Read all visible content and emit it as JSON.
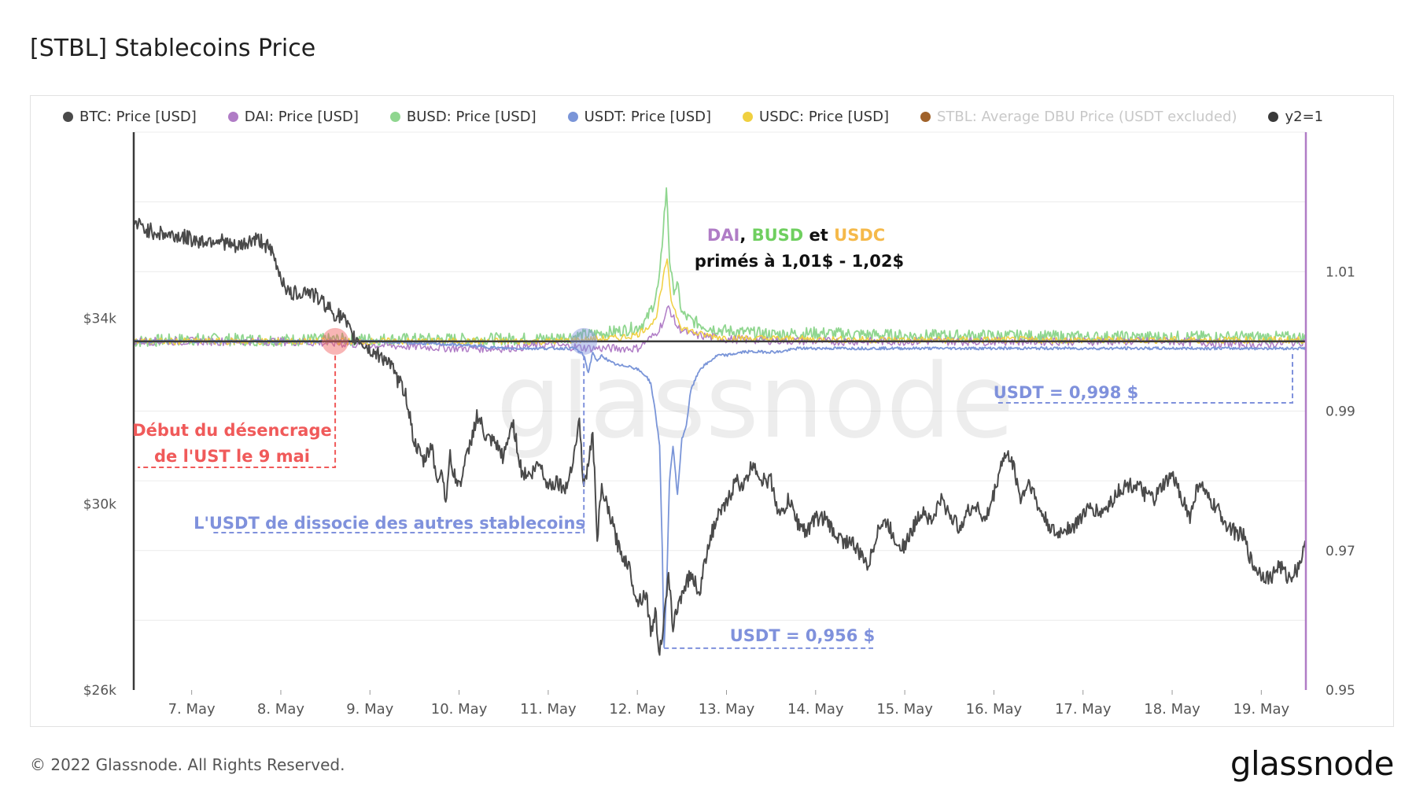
{
  "title": "[STBL] Stablecoins Price",
  "footer": "© 2022 Glassnode. All Rights Reserved.",
  "brand": "glassnode",
  "watermark": "glassnode",
  "colors": {
    "btc": "#4a4a4a",
    "dai": "#b07cc6",
    "busd": "#8fd68f",
    "usdt": "#7a95d8",
    "usdc": "#f0d040",
    "stbl": "#a0622a",
    "y2": "#3a3a3a",
    "annotation_red": "#f05a5a",
    "annotation_blue": "#7f91dc"
  },
  "legend": [
    {
      "label": "BTC: Price [USD]",
      "color": "#4a4a4a",
      "faded": false
    },
    {
      "label": "DAI: Price [USD]",
      "color": "#b07cc6",
      "faded": false
    },
    {
      "label": "BUSD: Price [USD]",
      "color": "#8fd68f",
      "faded": false
    },
    {
      "label": "USDT: Price [USD]",
      "color": "#7a95d8",
      "faded": false
    },
    {
      "label": "USDC: Price [USD]",
      "color": "#f0d040",
      "faded": false
    },
    {
      "label": "STBL: Average DBU Price (USDT excluded)",
      "color": "#a0622a",
      "faded": true
    },
    {
      "label": "y2=1",
      "color": "#3a3a3a",
      "faded": false
    }
  ],
  "annotations": {
    "depeg_line1": "Début du désencrage",
    "depeg_line2": "de l'UST le 9 mai",
    "usdt_dissociate": "L'USDT de dissocie des autres stablecoins",
    "usdt_low": "USDT = 0,956 $",
    "usdt_recover": "USDT = 0,998 $",
    "premium_dai": "DAI",
    "premium_sep1": ", ",
    "premium_busd": "BUSD",
    "premium_et": " et ",
    "premium_usdc": "USDC",
    "premium_line2": "primés à 1,01$ - 1,02$"
  },
  "chart_data": {
    "type": "line",
    "x_ticks": [
      "7. May",
      "8. May",
      "9. May",
      "10. May",
      "11. May",
      "12. May",
      "13. May",
      "14. May",
      "15. May",
      "16. May",
      "17. May",
      "18. May",
      "19. May"
    ],
    "y_left": {
      "ticks": [
        "$26k",
        "$30k",
        "$34k"
      ],
      "tick_values": [
        26000,
        30000,
        34000
      ],
      "range": [
        26000,
        38000
      ],
      "label": ""
    },
    "y_right": {
      "ticks": [
        "0.95",
        "0.97",
        "0.99",
        "1.01"
      ],
      "tick_values": [
        0.95,
        0.97,
        0.99,
        1.01
      ],
      "range": [
        0.95,
        1.03
      ],
      "label": ""
    },
    "x_range_days": [
      6.35,
      19.5
    ],
    "series": [
      {
        "name": "BTC: Price [USD]",
        "axis": "left",
        "x": [
          6.35,
          6.5,
          6.7,
          6.9,
          7.1,
          7.3,
          7.5,
          7.7,
          7.8,
          7.9,
          8.0,
          8.1,
          8.3,
          8.5,
          8.6,
          8.7,
          8.8,
          8.9,
          9.0,
          9.1,
          9.2,
          9.3,
          9.4,
          9.5,
          9.6,
          9.7,
          9.75,
          9.8,
          9.85,
          9.9,
          9.95,
          10.0,
          10.1,
          10.2,
          10.25,
          10.3,
          10.4,
          10.5,
          10.55,
          10.6,
          10.7,
          10.8,
          10.9,
          11.0,
          11.1,
          11.2,
          11.3,
          11.35,
          11.4,
          11.45,
          11.5,
          11.55,
          11.6,
          11.7,
          11.8,
          11.9,
          12.0,
          12.1,
          12.15,
          12.2,
          12.25,
          12.3,
          12.35,
          12.4,
          12.5,
          12.6,
          12.7,
          12.8,
          12.9,
          13.0,
          13.1,
          13.2,
          13.3,
          13.4,
          13.5,
          13.6,
          13.7,
          13.8,
          13.9,
          14.0,
          14.1,
          14.2,
          14.3,
          14.4,
          14.5,
          14.6,
          14.7,
          14.8,
          14.9,
          15.0,
          15.1,
          15.2,
          15.3,
          15.4,
          15.5,
          15.6,
          15.7,
          15.8,
          15.9,
          16.0,
          16.1,
          16.2,
          16.3,
          16.4,
          16.5,
          16.6,
          16.7,
          16.8,
          16.9,
          17.0,
          17.1,
          17.2,
          17.3,
          17.4,
          17.5,
          17.6,
          17.7,
          17.8,
          17.9,
          18.0,
          18.1,
          18.2,
          18.3,
          18.4,
          18.5,
          18.6,
          18.7,
          18.8,
          18.9,
          19.0,
          19.1,
          19.2,
          19.3,
          19.4,
          19.5
        ],
        "y": [
          36050,
          35900,
          35800,
          35750,
          35650,
          35700,
          35500,
          35700,
          35650,
          35400,
          34900,
          34500,
          34600,
          34300,
          34100,
          34000,
          33600,
          33500,
          33300,
          33200,
          33100,
          32700,
          32400,
          31300,
          30900,
          31300,
          30400,
          30800,
          30100,
          31000,
          30600,
          30400,
          31100,
          31900,
          31700,
          31400,
          31300,
          31000,
          31400,
          31800,
          30700,
          30600,
          30900,
          30400,
          30500,
          30300,
          31200,
          31800,
          30300,
          30900,
          31500,
          29300,
          30300,
          29700,
          29000,
          28700,
          27900,
          28100,
          27200,
          27700,
          26800,
          27500,
          28400,
          27400,
          28100,
          28500,
          28100,
          29200,
          29700,
          30000,
          30500,
          30400,
          30900,
          30500,
          30500,
          29700,
          30100,
          29600,
          29400,
          29700,
          29700,
          29400,
          29200,
          29200,
          28900,
          28700,
          29500,
          29600,
          29200,
          29100,
          29500,
          29900,
          29600,
          30100,
          29800,
          29500,
          29800,
          30000,
          29600,
          30200,
          31000,
          31000,
          30100,
          30500,
          29900,
          29600,
          29300,
          29500,
          29500,
          29800,
          29900,
          29800,
          30000,
          30300,
          30400,
          30400,
          30200,
          30100,
          30400,
          30600,
          30200,
          29700,
          30500,
          30100,
          29900,
          29600,
          29400,
          29300,
          28700,
          28500,
          28400,
          28700,
          28400,
          28600,
          29100
        ]
      },
      {
        "name": "USDT: Price [USD]",
        "axis": "right",
        "x": [
          6.35,
          7.0,
          8.0,
          9.0,
          10.0,
          10.5,
          11.0,
          11.3,
          11.4,
          11.45,
          11.5,
          11.55,
          11.6,
          11.65,
          11.7,
          11.8,
          11.9,
          12.0,
          12.1,
          12.15,
          12.2,
          12.25,
          12.28,
          12.3,
          12.33,
          12.36,
          12.4,
          12.45,
          12.5,
          12.55,
          12.6,
          12.7,
          12.8,
          12.9,
          13.0,
          13.2,
          13.4,
          13.6,
          13.8,
          14.0,
          14.5,
          15.0,
          16.0,
          17.0,
          18.0,
          19.0,
          19.5
        ],
        "y": [
          1.0,
          1.0,
          1.0,
          1.0,
          0.9995,
          0.999,
          0.999,
          0.999,
          0.998,
          0.9955,
          0.9985,
          0.997,
          0.998,
          0.9975,
          0.997,
          0.9965,
          0.9965,
          0.996,
          0.995,
          0.994,
          0.99,
          0.985,
          0.97,
          0.956,
          0.965,
          0.98,
          0.985,
          0.978,
          0.986,
          0.988,
          0.993,
          0.996,
          0.997,
          0.998,
          0.998,
          0.9985,
          0.9985,
          0.9985,
          0.999,
          0.999,
          0.999,
          0.999,
          0.999,
          0.999,
          0.999,
          0.999,
          0.999
        ]
      },
      {
        "name": "BUSD: Price [USD]",
        "axis": "right",
        "x": [
          6.35,
          7.0,
          8.0,
          9.0,
          10.0,
          11.0,
          11.5,
          11.8,
          12.0,
          12.1,
          12.2,
          12.25,
          12.3,
          12.33,
          12.36,
          12.4,
          12.45,
          12.5,
          12.6,
          12.8,
          13.0,
          13.5,
          14.0,
          15.0,
          16.0,
          17.0,
          18.0,
          19.0,
          19.5
        ],
        "y": [
          1.0,
          1.0003,
          1.0002,
          1.0003,
          1.0003,
          1.0004,
          1.001,
          1.0015,
          1.002,
          1.003,
          1.006,
          1.009,
          1.018,
          1.022,
          1.012,
          1.0075,
          1.008,
          1.004,
          1.003,
          1.002,
          1.0015,
          1.001,
          1.0012,
          1.0008,
          1.0008,
          1.0006,
          1.0006,
          1.0006,
          1.0005
        ]
      },
      {
        "name": "USDC: Price [USD]",
        "axis": "right",
        "x": [
          6.35,
          8.0,
          10.0,
          11.0,
          11.5,
          11.8,
          12.0,
          12.2,
          12.28,
          12.33,
          12.38,
          12.45,
          12.5,
          12.7,
          13.0,
          14.0,
          15.0,
          16.0,
          17.0,
          18.0,
          19.0,
          19.5
        ],
        "y": [
          1.0,
          1.0,
          1.0,
          1.0,
          1.0003,
          1.0005,
          1.001,
          1.003,
          1.008,
          1.012,
          1.006,
          1.0035,
          1.002,
          1.001,
          1.0005,
          1.0003,
          1.0002,
          1.0002,
          1.0002,
          1.0002,
          1.0002,
          1.0002
        ]
      },
      {
        "name": "DAI: Price [USD]",
        "axis": "right",
        "x": [
          6.35,
          8.0,
          9.0,
          10.0,
          10.5,
          11.0,
          11.5,
          12.0,
          12.2,
          12.3,
          12.35,
          12.45,
          12.6,
          13.0,
          14.0,
          15.0,
          16.0,
          17.0,
          18.0,
          19.0,
          19.5
        ],
        "y": [
          1.0,
          1.0,
          0.9995,
          0.999,
          0.999,
          0.9995,
          0.999,
          0.999,
          1.001,
          1.003,
          1.005,
          1.002,
          1.001,
          1.0003,
          1.0,
          1.0,
          1.0,
          1.0,
          1.0,
          0.9995,
          1.0
        ]
      },
      {
        "name": "y2=1",
        "axis": "right",
        "x": [
          6.35,
          19.5
        ],
        "y": [
          1.0,
          1.0
        ]
      }
    ]
  }
}
